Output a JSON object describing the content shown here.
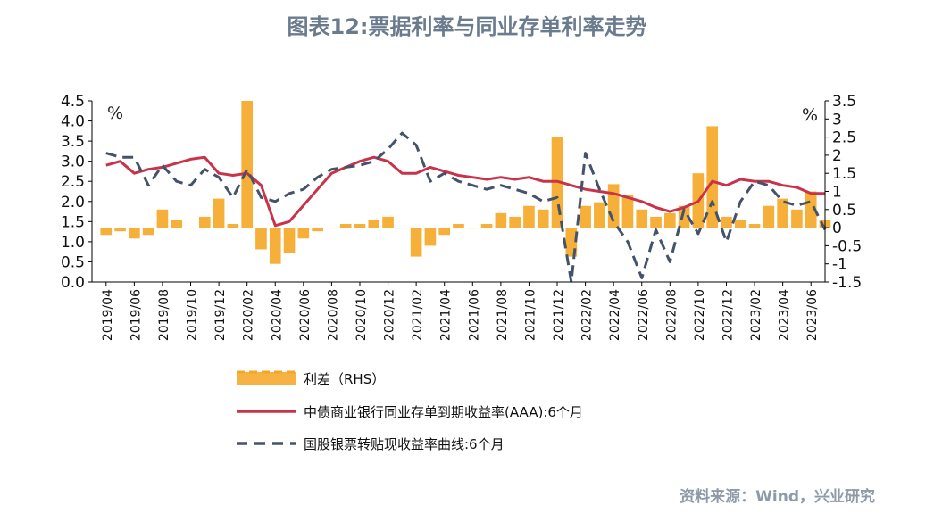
{
  "chart_data": {
    "type": "line",
    "title": "图表12:票据利率与同业存单利率走势",
    "source": "资料来源：Wind，兴业研究",
    "left_axis": {
      "unit": "%",
      "min": 0.0,
      "max": 4.5,
      "step": 0.5,
      "ticks": [
        "0.0",
        "0.5",
        "1.0",
        "1.5",
        "2.0",
        "2.5",
        "3.0",
        "3.5",
        "4.0",
        "4.5"
      ]
    },
    "right_axis": {
      "unit": "%",
      "min": -1.5,
      "max": 3.5,
      "step": 0.5,
      "ticks": [
        "-1.5",
        "-1",
        "-0.5",
        "0",
        "0.5",
        "1",
        "1.5",
        "2",
        "2.5",
        "3",
        "3.5"
      ]
    },
    "x_labels": [
      "2019/04",
      "2019/06",
      "2019/08",
      "2019/10",
      "2019/12",
      "2020/02",
      "2020/04",
      "2020/06",
      "2020/08",
      "2020/10",
      "2020/12",
      "2021/02",
      "2021/04",
      "2021/06",
      "2021/08",
      "2021/10",
      "2021/12",
      "2022/02",
      "2022/04",
      "2022/06",
      "2022/08",
      "2022/10",
      "2022/12",
      "2023/02",
      "2023/04",
      "2023/06"
    ],
    "legend_placement": "bottom",
    "series": [
      {
        "name": "利差（RHS）",
        "axis": "right",
        "style": "area",
        "color": "#F5A623",
        "x": [
          0,
          0.5,
          1,
          1.5,
          2,
          2.5,
          3,
          3.5,
          4,
          4.5,
          5,
          5.5,
          6,
          6.5,
          7,
          7.5,
          8,
          8.5,
          9,
          9.5,
          10,
          10.5,
          11,
          11.5,
          12,
          12.5,
          13,
          13.5,
          14,
          14.5,
          15,
          15.5,
          16,
          16.5,
          17,
          17.5,
          18,
          18.5,
          19,
          19.5,
          20,
          20.5,
          21,
          21.5,
          22,
          22.5,
          23,
          23.5,
          24,
          24.5,
          25,
          25.5
        ],
        "values": [
          -0.2,
          -0.1,
          -0.3,
          -0.2,
          0.5,
          0.2,
          0.0,
          0.3,
          0.8,
          0.1,
          3.5,
          -0.6,
          -1.0,
          -0.7,
          -0.3,
          -0.1,
          0.0,
          0.1,
          0.1,
          0.2,
          0.3,
          0.0,
          -0.8,
          -0.5,
          -0.2,
          0.1,
          0.0,
          0.1,
          0.4,
          0.3,
          0.6,
          0.5,
          2.5,
          -0.8,
          0.6,
          0.7,
          1.2,
          0.9,
          0.5,
          0.3,
          0.4,
          0.6,
          1.5,
          2.8,
          0.3,
          0.2,
          0.1,
          0.6,
          0.8,
          0.5,
          1.0,
          0.2
        ]
      },
      {
        "name": "中债商业银行同业存单到期收益率(AAA):6个月",
        "axis": "left",
        "style": "solid",
        "color": "#C8334A",
        "x": [
          0,
          0.5,
          1,
          1.5,
          2,
          2.5,
          3,
          3.5,
          4,
          4.5,
          5,
          5.5,
          6,
          6.5,
          7,
          7.5,
          8,
          8.5,
          9,
          9.5,
          10,
          10.5,
          11,
          11.5,
          12,
          12.5,
          13,
          13.5,
          14,
          14.5,
          15,
          15.5,
          16,
          16.5,
          17,
          17.5,
          18,
          18.5,
          19,
          19.5,
          20,
          20.5,
          21,
          21.5,
          22,
          22.5,
          23,
          23.5,
          24,
          24.5,
          25,
          25.5
        ],
        "values": [
          2.9,
          3.0,
          2.7,
          2.8,
          2.85,
          2.95,
          3.05,
          3.1,
          2.7,
          2.65,
          2.7,
          2.4,
          1.4,
          1.5,
          1.9,
          2.3,
          2.7,
          2.85,
          3.0,
          3.1,
          3.0,
          2.7,
          2.7,
          2.85,
          2.75,
          2.65,
          2.6,
          2.55,
          2.6,
          2.55,
          2.6,
          2.5,
          2.5,
          2.4,
          2.3,
          2.25,
          2.2,
          2.1,
          2.0,
          1.85,
          1.75,
          1.85,
          2.0,
          2.5,
          2.4,
          2.55,
          2.5,
          2.5,
          2.4,
          2.35,
          2.2,
          2.2
        ]
      },
      {
        "name": "国股银票转贴现收益率曲线:6个月",
        "axis": "left",
        "style": "dashed",
        "color": "#44536A",
        "x": [
          0,
          0.5,
          1,
          1.5,
          2,
          2.5,
          3,
          3.5,
          4,
          4.5,
          5,
          5.5,
          6,
          6.5,
          7,
          7.5,
          8,
          8.5,
          9,
          9.5,
          10,
          10.5,
          11,
          11.5,
          12,
          12.5,
          13,
          13.5,
          14,
          14.5,
          15,
          15.5,
          16,
          16.5,
          17,
          17.5,
          18,
          18.5,
          19,
          19.5,
          20,
          20.5,
          21,
          21.5,
          22,
          22.5,
          23,
          23.5,
          24,
          24.5,
          25,
          25.5
        ],
        "values": [
          3.2,
          3.1,
          3.1,
          2.4,
          2.9,
          2.5,
          2.4,
          2.8,
          2.6,
          2.1,
          2.8,
          2.1,
          2.0,
          2.2,
          2.3,
          2.6,
          2.8,
          2.85,
          2.9,
          3.0,
          3.3,
          3.7,
          3.4,
          2.5,
          2.7,
          2.5,
          2.4,
          2.3,
          2.4,
          2.3,
          2.2,
          2.0,
          2.1,
          0.0,
          3.2,
          2.3,
          1.5,
          1.0,
          0.1,
          1.3,
          0.5,
          1.8,
          1.2,
          2.0,
          1.0,
          2.0,
          2.5,
          2.4,
          2.0,
          1.9,
          2.0,
          1.3
        ]
      }
    ]
  }
}
